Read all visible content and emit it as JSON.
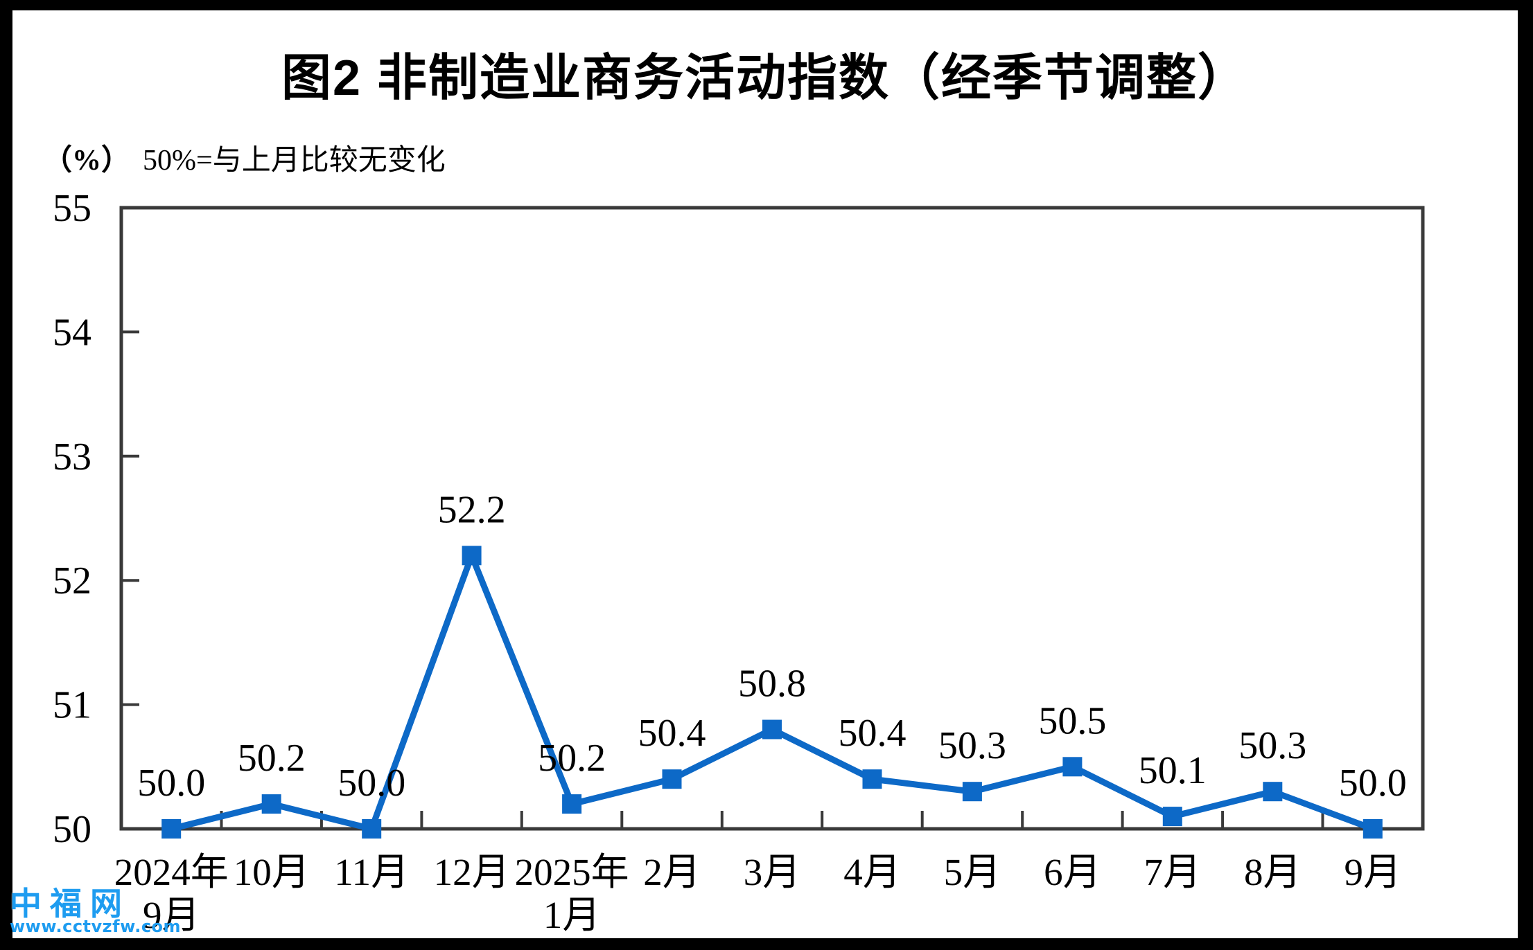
{
  "chart_data": {
    "type": "line",
    "title": "图2 非制造业商务活动指数（经季节调整）",
    "unit_label": "（%）",
    "subtitle": "50%=与上月比较无变化",
    "categories": [
      [
        "2024年",
        "9月"
      ],
      [
        "10月"
      ],
      [
        "11月"
      ],
      [
        "12月"
      ],
      [
        "2025年",
        "1月"
      ],
      [
        "2月"
      ],
      [
        "3月"
      ],
      [
        "4月"
      ],
      [
        "5月"
      ],
      [
        "6月"
      ],
      [
        "7月"
      ],
      [
        "8月"
      ],
      [
        "9月"
      ]
    ],
    "values": [
      50.0,
      50.2,
      50.0,
      52.2,
      50.2,
      50.4,
      50.8,
      50.4,
      50.3,
      50.5,
      50.1,
      50.3,
      50.0
    ],
    "data_labels": [
      "50.0",
      "50.2",
      "50.0",
      "52.2",
      "50.2",
      "50.4",
      "50.8",
      "50.4",
      "50.3",
      "50.5",
      "50.1",
      "50.3",
      "50.0"
    ],
    "ylim": [
      50,
      55
    ],
    "yticks": [
      "50",
      "51",
      "52",
      "53",
      "54",
      "55"
    ],
    "xlabel": "",
    "ylabel": "",
    "grid": false,
    "legend": "none",
    "line_color": "#0D69C7",
    "axis_color": "#3A3A3A",
    "text_color": "#000000",
    "marker": "square"
  },
  "watermark": {
    "name": "中福网",
    "site": "www.cctvzfw.com",
    "color": "#1E9CF0"
  }
}
